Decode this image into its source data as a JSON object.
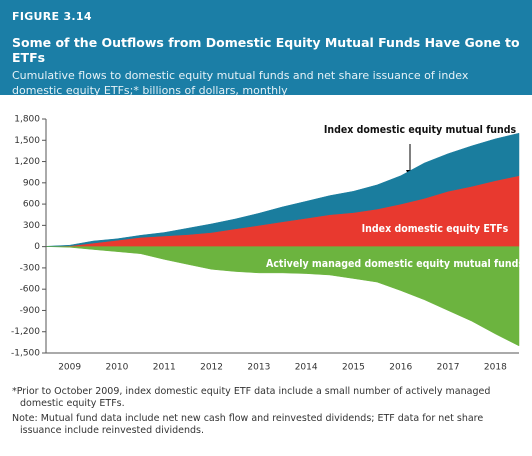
{
  "chart_data": {
    "type": "area",
    "figure": "FIGURE 3.14",
    "title": "Some of the Outflows from Domestic Equity Mutual Funds Have Gone to ETFs",
    "subtitle": "Cumulative flows to domestic equity mutual funds and net share issuance of index domestic equity ETFs;* billions of dollars, monthly",
    "x": [
      2009,
      2009.5,
      2010,
      2010.5,
      2011,
      2011.5,
      2012,
      2012.5,
      2013,
      2013.5,
      2014,
      2014.5,
      2015,
      2015.5,
      2016,
      2016.5,
      2017,
      2017.5,
      2018,
      2018.5,
      2019
    ],
    "series": [
      {
        "name": "Index domestic equity ETFs",
        "color": "#e8392f",
        "values": [
          0,
          10,
          50,
          90,
          130,
          150,
          170,
          200,
          250,
          300,
          350,
          400,
          450,
          480,
          530,
          600,
          680,
          780,
          850,
          930,
          1000
        ]
      },
      {
        "name": "Index domestic equity mutual funds",
        "color": "#1a7d9e",
        "values": [
          5,
          10,
          30,
          20,
          30,
          50,
          90,
          120,
          140,
          170,
          210,
          240,
          270,
          300,
          340,
          400,
          500,
          530,
          570,
          590,
          600
        ]
      },
      {
        "name": "Actively managed domestic equity mutual funds",
        "color": "#6cb43f",
        "values": [
          0,
          -10,
          -40,
          -70,
          -100,
          -180,
          -250,
          -320,
          -350,
          -370,
          -370,
          -380,
          -400,
          -450,
          -500,
          -620,
          -750,
          -900,
          -1050,
          -1230,
          -1400
        ]
      }
    ],
    "xlim": [
      2009,
      2019
    ],
    "xticks": [
      {
        "value": 2009.5,
        "label": "2009"
      },
      {
        "value": 2010.5,
        "label": "2010"
      },
      {
        "value": 2011.5,
        "label": "2011"
      },
      {
        "value": 2012.5,
        "label": "2012"
      },
      {
        "value": 2013.5,
        "label": "2013"
      },
      {
        "value": 2014.5,
        "label": "2014"
      },
      {
        "value": 2015.5,
        "label": "2015"
      },
      {
        "value": 2016.5,
        "label": "2016"
      },
      {
        "value": 2017.5,
        "label": "2017"
      },
      {
        "value": 2018.5,
        "label": "2018"
      }
    ],
    "ylim": [
      -1500,
      1800
    ],
    "yticks": [
      {
        "value": 1800,
        "label": "1,800"
      },
      {
        "value": 1500,
        "label": "1,500"
      },
      {
        "value": 1200,
        "label": "1,200"
      },
      900,
      600,
      300,
      0,
      -300,
      -600,
      -900,
      {
        "value": -1200,
        "label": "-1,200"
      },
      {
        "value": -1500,
        "label": "-1,500"
      }
    ],
    "notes": [
      "*Prior to October 2009, index domestic equity ETF data include a small number of actively managed domestic equity ETFs.",
      "Note: Mutual fund data include net new cash flow and reinvested dividends; ETF data for net share issuance include reinvested dividends."
    ]
  }
}
